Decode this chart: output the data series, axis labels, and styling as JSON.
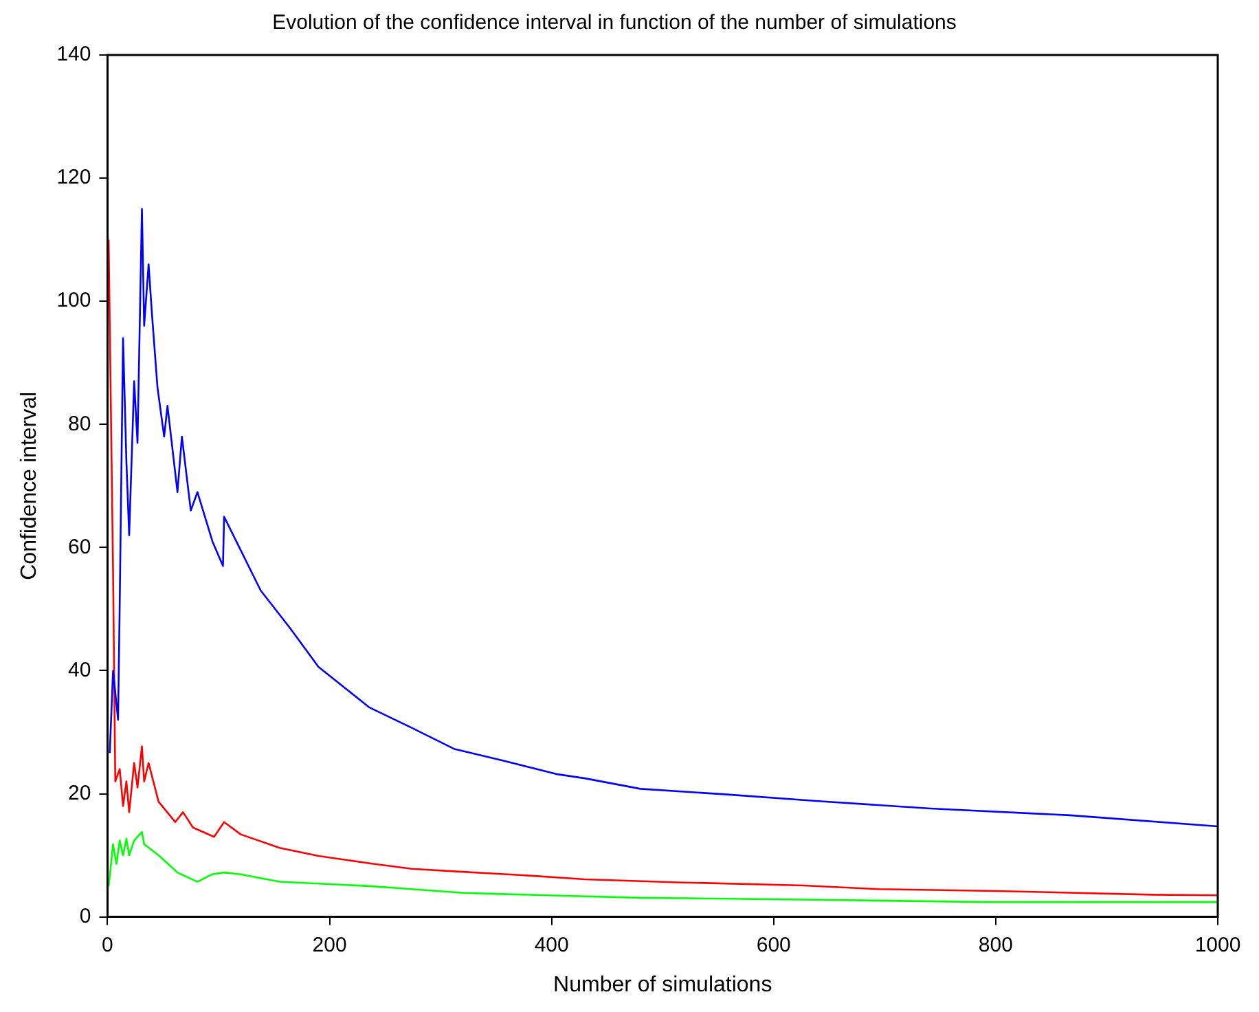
{
  "chart_data": {
    "type": "line",
    "title": "Evolution of the confidence interval in function of the number of simulations",
    "xlabel": "Number of simulations",
    "ylabel": "Confidence interval",
    "xlim": [
      0,
      1000
    ],
    "xticks": [
      0,
      200,
      400,
      600,
      800,
      1000
    ],
    "ylim": [
      0,
      140
    ],
    "yticks": [
      0,
      20,
      40,
      60,
      80,
      100,
      120,
      140
    ],
    "grid": false,
    "legend": false,
    "marker": "none",
    "line_style": "solid",
    "series": [
      {
        "color": "#0000ff",
        "x": [
          2,
          5,
          9.5,
          11,
          14,
          17,
          19.5,
          24,
          27,
          31,
          33,
          37,
          40,
          45,
          51,
          54,
          63,
          67,
          75,
          81,
          94.5,
          104,
          105,
          116,
          138,
          164,
          190,
          236,
          274,
          312,
          356,
          404,
          430,
          480,
          556,
          640,
          741,
          867,
          1000
        ],
        "values": [
          26.6,
          40,
          32,
          51,
          94,
          74,
          62,
          87,
          77,
          115,
          96,
          106,
          98,
          86,
          78,
          83,
          69,
          78,
          66,
          69,
          61,
          57,
          65,
          61,
          53,
          47,
          40.6,
          34,
          30.7,
          27.3,
          25.4,
          23.2,
          22.5,
          20.8,
          19.9,
          18.8,
          17.6,
          16.5,
          14.7
        ]
      },
      {
        "color": "#ff0000",
        "x": [
          1,
          5,
          7,
          11,
          14,
          17,
          19.5,
          24,
          27,
          31,
          33,
          37,
          46,
          61,
          68,
          77,
          96,
          105,
          120,
          155,
          190,
          236,
          274,
          312,
          380,
          430,
          514,
          627,
          695,
          800,
          940,
          1000
        ],
        "values": [
          110,
          56,
          22,
          24,
          18,
          22,
          17,
          25,
          21,
          27.7,
          22,
          25,
          18.7,
          15.4,
          17,
          14.5,
          13,
          15.4,
          13.4,
          11.2,
          9.9,
          8.7,
          7.8,
          7.4,
          6.7,
          6.1,
          5.6,
          5.1,
          4.5,
          4.2,
          3.6,
          3.5
        ]
      },
      {
        "color": "#00ff00",
        "x": [
          1,
          5,
          8,
          11,
          14,
          17,
          19.5,
          24,
          31,
          33,
          46,
          63,
          81,
          94,
          105,
          120,
          155,
          190,
          236,
          274,
          320,
          395,
          480,
          627,
          795,
          1000
        ],
        "values": [
          4.9,
          11.8,
          8.6,
          12.4,
          10,
          12.7,
          10,
          12.4,
          13.8,
          11.8,
          10,
          7.2,
          5.7,
          6.9,
          7.2,
          6.9,
          5.7,
          5.4,
          5,
          4.5,
          3.9,
          3.5,
          3.1,
          2.8,
          2.4,
          2.4
        ]
      }
    ]
  }
}
